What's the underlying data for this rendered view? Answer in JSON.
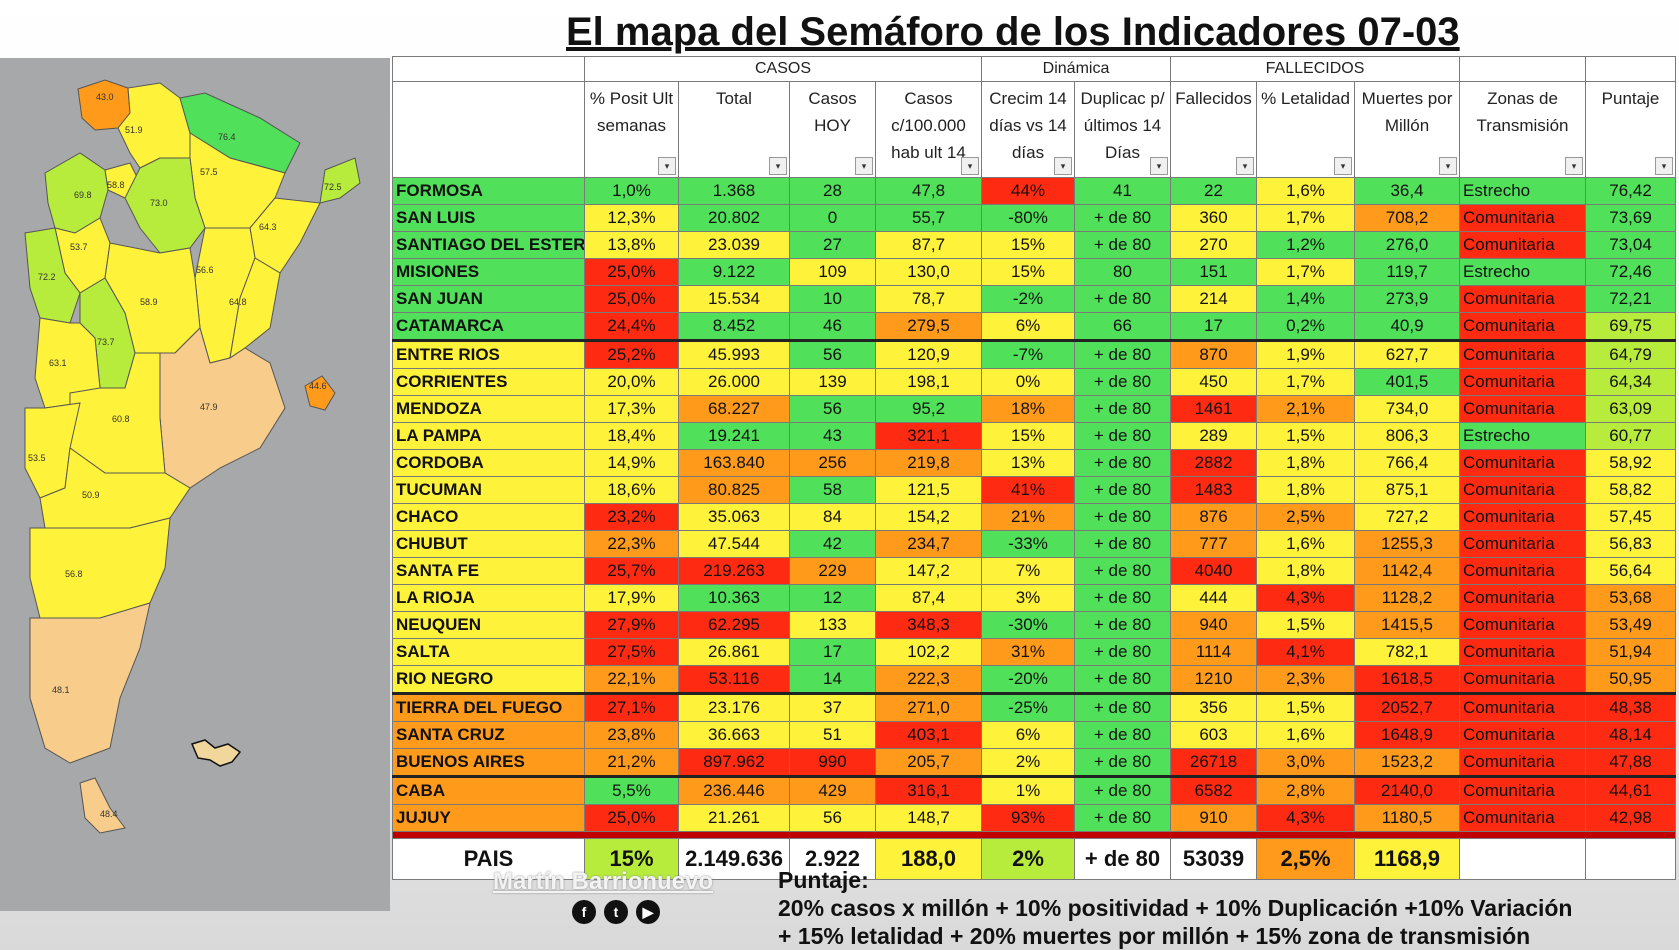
{
  "title": "El mapa del Semáforo de los Indicadores 07-03",
  "colors": {
    "red": "#ff2a12",
    "orange": "#ff9a1a",
    "yellow": "#fff23a",
    "lgreen": "#b7ec3c",
    "green": "#50e05a",
    "white": "#ffffff",
    "peach": "#f8cd8c"
  },
  "groups": {
    "casos": "CASOS",
    "dinamica": "Dinámica",
    "fallecidos": "FALLECIDOS"
  },
  "headers": [
    "",
    "% Posit Ult semanas",
    "Total",
    "Casos HOY",
    "Casos c/100.000 hab ult 14",
    "Crecim 14 días vs 14 días",
    "Duplicac p/últimos 14 Días",
    "Fallecidos",
    "% Letalidad",
    "Muertes por Millón",
    "Zonas de Transmisión",
    "Puntaje"
  ],
  "rows": [
    {
      "v": [
        "FORMOSA",
        "1,0%",
        "1.368",
        "28",
        "47,8",
        "44%",
        "41",
        "22",
        "1,6%",
        "36,4",
        "Estrecho",
        "76,42"
      ],
      "c": [
        "green",
        "green",
        "green",
        "green",
        "green",
        "red",
        "green",
        "green",
        "yellow",
        "green",
        "green",
        "green"
      ]
    },
    {
      "v": [
        "SAN LUIS",
        "12,3%",
        "20.802",
        "0",
        "55,7",
        "-80%",
        "+ de 80",
        "360",
        "1,7%",
        "708,2",
        "Comunitaria",
        "73,69"
      ],
      "c": [
        "green",
        "yellow",
        "green",
        "green",
        "green",
        "green",
        "green",
        "yellow",
        "yellow",
        "orange",
        "red",
        "green"
      ]
    },
    {
      "v": [
        "SANTIAGO DEL ESTERO",
        "13,8%",
        "23.039",
        "27",
        "87,7",
        "15%",
        "+ de 80",
        "270",
        "1,2%",
        "276,0",
        "Comunitaria",
        "73,04"
      ],
      "c": [
        "green",
        "yellow",
        "yellow",
        "green",
        "yellow",
        "yellow",
        "green",
        "yellow",
        "green",
        "green",
        "red",
        "green"
      ]
    },
    {
      "v": [
        "MISIONES",
        "25,0%",
        "9.122",
        "109",
        "130,0",
        "15%",
        "80",
        "151",
        "1,7%",
        "119,7",
        "Estrecho",
        "72,46"
      ],
      "c": [
        "green",
        "red",
        "green",
        "yellow",
        "yellow",
        "yellow",
        "green",
        "green",
        "yellow",
        "green",
        "green",
        "green"
      ]
    },
    {
      "v": [
        "SAN JUAN",
        "25,0%",
        "15.534",
        "10",
        "78,7",
        "-2%",
        "+ de 80",
        "214",
        "1,4%",
        "273,9",
        "Comunitaria",
        "72,21"
      ],
      "c": [
        "green",
        "red",
        "yellow",
        "green",
        "yellow",
        "green",
        "green",
        "yellow",
        "green",
        "green",
        "red",
        "green"
      ]
    },
    {
      "v": [
        "CATAMARCA",
        "24,4%",
        "8.452",
        "46",
        "279,5",
        "6%",
        "66",
        "17",
        "0,2%",
        "40,9",
        "Comunitaria",
        "69,75"
      ],
      "c": [
        "green",
        "red",
        "green",
        "green",
        "orange",
        "yellow",
        "green",
        "green",
        "green",
        "green",
        "red",
        "lgreen"
      ]
    },
    {
      "v": [
        "ENTRE RIOS",
        "25,2%",
        "45.993",
        "56",
        "120,9",
        "-7%",
        "+ de 80",
        "870",
        "1,9%",
        "627,7",
        "Comunitaria",
        "64,79"
      ],
      "c": [
        "yellow",
        "red",
        "yellow",
        "green",
        "yellow",
        "green",
        "green",
        "orange",
        "yellow",
        "yellow",
        "red",
        "lgreen"
      ],
      "sep": true
    },
    {
      "v": [
        "CORRIENTES",
        "20,0%",
        "26.000",
        "139",
        "198,1",
        "0%",
        "+ de 80",
        "450",
        "1,7%",
        "401,5",
        "Comunitaria",
        "64,34"
      ],
      "c": [
        "yellow",
        "yellow",
        "yellow",
        "yellow",
        "yellow",
        "yellow",
        "green",
        "yellow",
        "yellow",
        "green",
        "red",
        "lgreen"
      ]
    },
    {
      "v": [
        "MENDOZA",
        "17,3%",
        "68.227",
        "56",
        "95,2",
        "18%",
        "+ de 80",
        "1461",
        "2,1%",
        "734,0",
        "Comunitaria",
        "63,09"
      ],
      "c": [
        "yellow",
        "yellow",
        "orange",
        "green",
        "green",
        "orange",
        "green",
        "red",
        "orange",
        "yellow",
        "red",
        "lgreen"
      ]
    },
    {
      "v": [
        "LA PAMPA",
        "18,4%",
        "19.241",
        "43",
        "321,1",
        "15%",
        "+ de 80",
        "289",
        "1,5%",
        "806,3",
        "Estrecho",
        "60,77"
      ],
      "c": [
        "yellow",
        "yellow",
        "green",
        "green",
        "red",
        "yellow",
        "green",
        "yellow",
        "yellow",
        "yellow",
        "green",
        "lgreen"
      ]
    },
    {
      "v": [
        "CORDOBA",
        "14,9%",
        "163.840",
        "256",
        "219,8",
        "13%",
        "+ de 80",
        "2882",
        "1,8%",
        "766,4",
        "Comunitaria",
        "58,92"
      ],
      "c": [
        "yellow",
        "yellow",
        "orange",
        "orange",
        "orange",
        "yellow",
        "green",
        "red",
        "yellow",
        "yellow",
        "red",
        "yellow"
      ]
    },
    {
      "v": [
        "TUCUMAN",
        "18,6%",
        "80.825",
        "58",
        "121,5",
        "41%",
        "+ de 80",
        "1483",
        "1,8%",
        "875,1",
        "Comunitaria",
        "58,82"
      ],
      "c": [
        "yellow",
        "yellow",
        "orange",
        "green",
        "yellow",
        "red",
        "green",
        "red",
        "yellow",
        "yellow",
        "red",
        "yellow"
      ]
    },
    {
      "v": [
        "CHACO",
        "23,2%",
        "35.063",
        "84",
        "154,2",
        "21%",
        "+ de 80",
        "876",
        "2,5%",
        "727,2",
        "Comunitaria",
        "57,45"
      ],
      "c": [
        "yellow",
        "red",
        "yellow",
        "yellow",
        "yellow",
        "orange",
        "green",
        "orange",
        "orange",
        "yellow",
        "red",
        "yellow"
      ]
    },
    {
      "v": [
        "CHUBUT",
        "22,3%",
        "47.544",
        "42",
        "234,7",
        "-33%",
        "+ de 80",
        "777",
        "1,6%",
        "1255,3",
        "Comunitaria",
        "56,83"
      ],
      "c": [
        "yellow",
        "orange",
        "yellow",
        "green",
        "orange",
        "green",
        "green",
        "orange",
        "yellow",
        "orange",
        "red",
        "yellow"
      ]
    },
    {
      "v": [
        "SANTA FE",
        "25,7%",
        "219.263",
        "229",
        "147,2",
        "7%",
        "+ de 80",
        "4040",
        "1,8%",
        "1142,4",
        "Comunitaria",
        "56,64"
      ],
      "c": [
        "yellow",
        "red",
        "red",
        "orange",
        "yellow",
        "yellow",
        "green",
        "red",
        "yellow",
        "orange",
        "red",
        "yellow"
      ]
    },
    {
      "v": [
        "LA RIOJA",
        "17,9%",
        "10.363",
        "12",
        "87,4",
        "3%",
        "+ de 80",
        "444",
        "4,3%",
        "1128,2",
        "Comunitaria",
        "53,68"
      ],
      "c": [
        "yellow",
        "yellow",
        "green",
        "green",
        "yellow",
        "yellow",
        "green",
        "yellow",
        "red",
        "orange",
        "red",
        "orange"
      ]
    },
    {
      "v": [
        "NEUQUEN",
        "27,9%",
        "62.295",
        "133",
        "348,3",
        "-30%",
        "+ de 80",
        "940",
        "1,5%",
        "1415,5",
        "Comunitaria",
        "53,49"
      ],
      "c": [
        "yellow",
        "red",
        "red",
        "yellow",
        "red",
        "green",
        "green",
        "orange",
        "yellow",
        "orange",
        "red",
        "orange"
      ]
    },
    {
      "v": [
        "SALTA",
        "27,5%",
        "26.861",
        "17",
        "102,2",
        "31%",
        "+ de 80",
        "1114",
        "4,1%",
        "782,1",
        "Comunitaria",
        "51,94"
      ],
      "c": [
        "yellow",
        "red",
        "yellow",
        "green",
        "yellow",
        "orange",
        "green",
        "orange",
        "red",
        "yellow",
        "red",
        "orange"
      ]
    },
    {
      "v": [
        "RIO NEGRO",
        "22,1%",
        "53.116",
        "14",
        "222,3",
        "-20%",
        "+ de 80",
        "1210",
        "2,3%",
        "1618,5",
        "Comunitaria",
        "50,95"
      ],
      "c": [
        "yellow",
        "orange",
        "red",
        "green",
        "orange",
        "green",
        "green",
        "orange",
        "orange",
        "red",
        "red",
        "orange"
      ]
    },
    {
      "v": [
        "TIERRA DEL FUEGO",
        "27,1%",
        "23.176",
        "37",
        "271,0",
        "-25%",
        "+ de 80",
        "356",
        "1,5%",
        "2052,7",
        "Comunitaria",
        "48,38"
      ],
      "c": [
        "orange",
        "red",
        "yellow",
        "yellow",
        "orange",
        "green",
        "green",
        "yellow",
        "yellow",
        "red",
        "red",
        "red"
      ],
      "sep": true
    },
    {
      "v": [
        "SANTA CRUZ",
        "23,8%",
        "36.663",
        "51",
        "403,1",
        "6%",
        "+ de 80",
        "603",
        "1,6%",
        "1648,9",
        "Comunitaria",
        "48,14"
      ],
      "c": [
        "orange",
        "orange",
        "yellow",
        "yellow",
        "red",
        "yellow",
        "green",
        "yellow",
        "yellow",
        "red",
        "red",
        "red"
      ]
    },
    {
      "v": [
        "BUENOS AIRES",
        "21,2%",
        "897.962",
        "990",
        "205,7",
        "2%",
        "+ de 80",
        "26718",
        "3,0%",
        "1523,2",
        "Comunitaria",
        "47,88"
      ],
      "c": [
        "orange",
        "orange",
        "red",
        "red",
        "orange",
        "yellow",
        "green",
        "red",
        "orange",
        "orange",
        "red",
        "red"
      ]
    },
    {
      "v": [
        "CABA",
        "5,5%",
        "236.446",
        "429",
        "316,1",
        "1%",
        "+ de 80",
        "6582",
        "2,8%",
        "2140,0",
        "Comunitaria",
        "44,61"
      ],
      "c": [
        "orange",
        "green",
        "orange",
        "orange",
        "red",
        "yellow",
        "green",
        "red",
        "orange",
        "red",
        "red",
        "red"
      ],
      "sep": true
    },
    {
      "v": [
        "JUJUY",
        "25,0%",
        "21.261",
        "56",
        "148,7",
        "93%",
        "+ de 80",
        "910",
        "4,3%",
        "1180,5",
        "Comunitaria",
        "42,98"
      ],
      "c": [
        "orange",
        "red",
        "yellow",
        "yellow",
        "yellow",
        "red",
        "green",
        "orange",
        "red",
        "orange",
        "red",
        "red"
      ]
    }
  ],
  "totals": {
    "v": [
      "PAIS",
      "15%",
      "2.149.636",
      "2.922",
      "188,0",
      "2%",
      "+ de 80",
      "53039",
      "2,5%",
      "1168,9",
      "",
      ""
    ],
    "c": [
      "white",
      "lgreen",
      "white",
      "white",
      "yellow",
      "lgreen",
      "white",
      "white",
      "orange",
      "yellow",
      "white",
      "white"
    ]
  },
  "author": "Martín Barrionuevo",
  "social_icons": [
    "facebook-icon",
    "twitter-icon",
    "youtube-icon"
  ],
  "formula": {
    "label": "Puntaje:",
    "line1": "20% casos x millón + 10% positividad + 10% Duplicación +10% Variación",
    "line2": "+ 15% letalidad + 20% muertes por millón + 15% zona de transmisión"
  },
  "map": {
    "labels": [
      "43.0",
      "51.9",
      "76.4",
      "57.5",
      "58.8",
      "69.8",
      "73.0",
      "72.5",
      "64.3",
      "53.7",
      "56.6",
      "72.2",
      "58.9",
      "64.8",
      "73.7",
      "63.1",
      "44.6",
      "47.9",
      "60.8",
      "53.5",
      "50.9",
      "56.8",
      "48.1",
      "48.4"
    ],
    "fills": [
      "orange",
      "yellow",
      "green",
      "yellow",
      "yellow",
      "lgreen",
      "lgreen",
      "lgreen",
      "yellow",
      "yellow",
      "yellow",
      "lgreen",
      "yellow",
      "yellow",
      "lgreen",
      "yellow",
      "orange",
      "peach",
      "yellow",
      "yellow",
      "yellow",
      "yellow",
      "peach",
      "peach"
    ]
  }
}
